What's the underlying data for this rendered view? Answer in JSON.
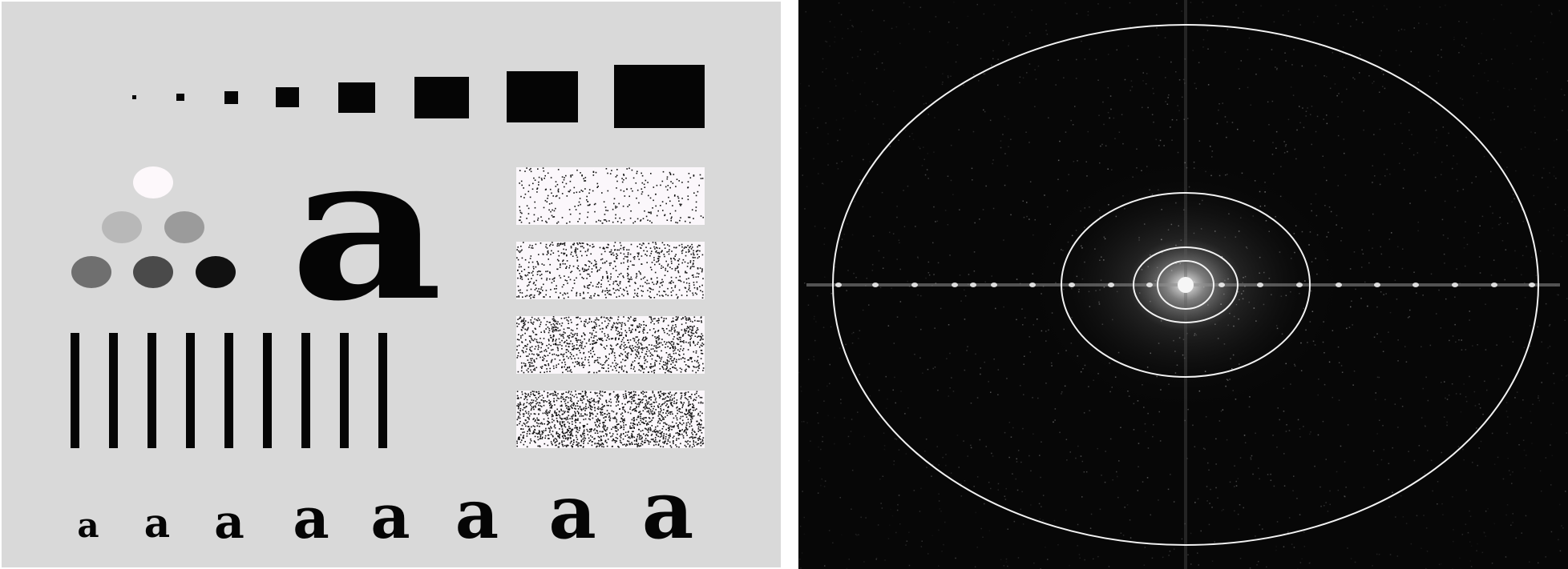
{
  "test_pattern": {
    "large_letter": "a",
    "letter_row": [
      "a",
      "a",
      "a",
      "a",
      "a",
      "a",
      "a",
      "a"
    ],
    "square_count": 8,
    "bar_count": 9,
    "circle_gray_levels": [
      "#fdf8fb",
      "#b8b8b8",
      "#9b9b9b",
      "#6f6f6f",
      "#4a4a4a",
      "#111111"
    ],
    "noise_rectangle_densities": [
      0.08,
      0.18,
      0.28,
      0.38
    ]
  },
  "spectrum": {
    "ring_count": 4
  },
  "colors": {
    "test_background": "#d9d9d9",
    "spectrum_background": "#070707",
    "ring": "#f2f2f2"
  }
}
